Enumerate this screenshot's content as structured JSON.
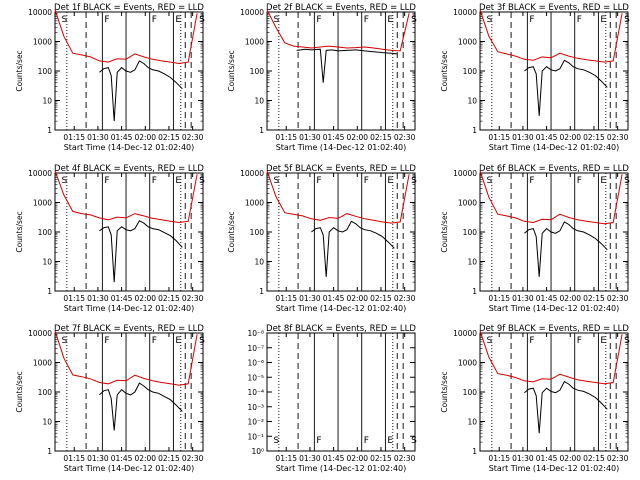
{
  "chart_data": [
    {
      "type": "line",
      "title": "Det 1f BLACK = Events, RED = LLD",
      "ylabel": "Counts/sec",
      "xlabel": "Start Time (14-Dec-12 01:02:40)",
      "ylim": [
        1,
        10000
      ],
      "yscale": "log",
      "yticks": [
        "1",
        "10",
        "100",
        "1000",
        "10000"
      ],
      "xticks": [
        "01:15",
        "01:30",
        "01:45",
        "02:00",
        "02:15",
        "02:30"
      ],
      "markers": [
        "S",
        "F",
        "F",
        "E",
        "S"
      ],
      "series": [
        {
          "color": "#d40000",
          "x": [
            0,
            6,
            12,
            18,
            24,
            30,
            36,
            42,
            48,
            54,
            60,
            66,
            72,
            78,
            84,
            90,
            96
          ],
          "y": [
            12000,
            1500,
            400,
            350,
            300,
            220,
            200,
            260,
            250,
            380,
            300,
            250,
            220,
            200,
            180,
            200,
            9000
          ]
        },
        {
          "color": "#000000",
          "x": [
            30,
            33,
            36,
            38,
            40,
            42,
            45,
            48,
            51,
            54,
            57,
            60,
            63,
            66,
            70,
            74,
            78,
            82,
            86
          ],
          "y": [
            90,
            120,
            130,
            70,
            2,
            90,
            130,
            100,
            90,
            110,
            220,
            180,
            130,
            110,
            100,
            80,
            60,
            40,
            25
          ]
        }
      ]
    },
    {
      "type": "line",
      "title": "Det 2f BLACK = Events, RED = LLD",
      "ylabel": "Counts/sec",
      "xlabel": "Start Time (14-Dec-12 01:02:40)",
      "ylim": [
        1,
        10000
      ],
      "yscale": "log",
      "yticks": [
        "1",
        "10",
        "100",
        "1000",
        "10000"
      ],
      "xticks": [
        "01:15",
        "01:30",
        "01:45",
        "02:00",
        "02:15",
        "02:30"
      ],
      "markers": [
        "S",
        "F",
        "F",
        "E",
        "S"
      ],
      "series": [
        {
          "color": "#d40000",
          "x": [
            0,
            6,
            12,
            18,
            24,
            30,
            36,
            42,
            48,
            54,
            60,
            66,
            72,
            78,
            84,
            90,
            96
          ],
          "y": [
            12000,
            3000,
            900,
            700,
            650,
            600,
            650,
            700,
            650,
            600,
            620,
            650,
            600,
            550,
            500,
            480,
            9000
          ]
        },
        {
          "color": "#000000",
          "x": [
            20,
            26,
            30,
            36,
            38,
            40,
            44,
            48,
            54,
            60,
            66,
            72,
            78,
            84,
            88
          ],
          "y": [
            500,
            550,
            520,
            550,
            40,
            500,
            520,
            480,
            500,
            520,
            480,
            450,
            420,
            400,
            380
          ]
        }
      ]
    },
    {
      "type": "line",
      "title": "Det 3f BLACK = Events, RED = LLD",
      "ylabel": "Counts/sec",
      "xlabel": "Start Time (14-Dec-12 01:02:40)",
      "ylim": [
        1,
        10000
      ],
      "yscale": "log",
      "yticks": [
        "1",
        "10",
        "100",
        "1000",
        "10000"
      ],
      "xticks": [
        "01:15",
        "01:30",
        "01:45",
        "02:00",
        "02:15",
        "02:30"
      ],
      "markers": [
        "S",
        "F",
        "F",
        "E",
        "S"
      ],
      "series": [
        {
          "color": "#d40000",
          "x": [
            0,
            6,
            12,
            18,
            24,
            30,
            36,
            42,
            48,
            54,
            60,
            66,
            72,
            78,
            84,
            90,
            96
          ],
          "y": [
            12000,
            1500,
            450,
            380,
            320,
            250,
            230,
            300,
            280,
            400,
            320,
            270,
            240,
            220,
            200,
            220,
            9000
          ]
        },
        {
          "color": "#000000",
          "x": [
            30,
            33,
            36,
            38,
            40,
            42,
            45,
            48,
            51,
            54,
            57,
            60,
            63,
            66,
            70,
            74,
            78,
            82,
            86
          ],
          "y": [
            100,
            130,
            140,
            80,
            3,
            100,
            140,
            110,
            100,
            120,
            230,
            190,
            140,
            120,
            110,
            90,
            70,
            45,
            28
          ]
        }
      ]
    },
    {
      "type": "line",
      "title": "Det 4f BLACK = Events, RED = LLD",
      "ylabel": "Counts/sec",
      "xlabel": "Start Time (14-Dec-12 01:02:40)",
      "ylim": [
        1,
        10000
      ],
      "yscale": "log",
      "yticks": [
        "1",
        "10",
        "100",
        "1000",
        "10000"
      ],
      "xticks": [
        "01:15",
        "01:30",
        "01:45",
        "02:00",
        "02:15",
        "02:30"
      ],
      "markers": [
        "S",
        "F",
        "F",
        "E",
        "S"
      ],
      "series": [
        {
          "color": "#d40000",
          "x": [
            0,
            6,
            12,
            18,
            24,
            30,
            36,
            42,
            48,
            54,
            60,
            66,
            72,
            78,
            84,
            90,
            96
          ],
          "y": [
            12000,
            1800,
            500,
            420,
            380,
            300,
            260,
            320,
            300,
            420,
            350,
            290,
            260,
            230,
            210,
            230,
            9000
          ]
        },
        {
          "color": "#000000",
          "x": [
            30,
            33,
            36,
            38,
            40,
            42,
            45,
            48,
            51,
            54,
            57,
            60,
            63,
            66,
            70,
            74,
            78,
            82,
            86
          ],
          "y": [
            110,
            140,
            150,
            80,
            2,
            110,
            150,
            120,
            110,
            130,
            240,
            200,
            150,
            130,
            120,
            95,
            75,
            50,
            30
          ]
        }
      ]
    },
    {
      "type": "line",
      "title": "Det 5f BLACK = Events, RED = LLD",
      "ylabel": "Counts/sec",
      "xlabel": "Start Time (14-Dec-12 01:02:40)",
      "ylim": [
        1,
        10000
      ],
      "yscale": "log",
      "yticks": [
        "1",
        "10",
        "100",
        "1000",
        "10000"
      ],
      "xticks": [
        "01:15",
        "01:30",
        "01:45",
        "02:00",
        "02:15",
        "02:30"
      ],
      "markers": [
        "S",
        "F",
        "F",
        "E",
        "S"
      ],
      "series": [
        {
          "color": "#d40000",
          "x": [
            0,
            6,
            12,
            18,
            24,
            30,
            36,
            42,
            48,
            54,
            60,
            66,
            72,
            78,
            84,
            90,
            96
          ],
          "y": [
            12000,
            1600,
            450,
            400,
            350,
            280,
            250,
            310,
            290,
            420,
            340,
            280,
            250,
            220,
            200,
            220,
            9000
          ]
        },
        {
          "color": "#000000",
          "x": [
            30,
            33,
            36,
            38,
            40,
            42,
            45,
            48,
            51,
            54,
            57,
            60,
            63,
            66,
            70,
            74,
            78,
            82,
            86
          ],
          "y": [
            100,
            130,
            140,
            80,
            3,
            100,
            140,
            110,
            100,
            120,
            230,
            190,
            140,
            120,
            110,
            90,
            70,
            45,
            28
          ]
        }
      ]
    },
    {
      "type": "line",
      "title": "Det 6f BLACK = Events, RED = LLD",
      "ylabel": "Counts/sec",
      "xlabel": "Start Time (14-Dec-12 01:02:40)",
      "ylim": [
        1,
        10000
      ],
      "yscale": "log",
      "yticks": [
        "1",
        "10",
        "100",
        "1000",
        "10000"
      ],
      "xticks": [
        "01:15",
        "01:30",
        "01:45",
        "02:00",
        "02:15",
        "02:30"
      ],
      "markers": [
        "S",
        "F",
        "F",
        "E",
        "S"
      ],
      "series": [
        {
          "color": "#d40000",
          "x": [
            0,
            6,
            12,
            18,
            24,
            30,
            36,
            42,
            48,
            54,
            60,
            66,
            72,
            78,
            84,
            90,
            96
          ],
          "y": [
            12000,
            1500,
            400,
            350,
            300,
            230,
            210,
            270,
            260,
            400,
            310,
            260,
            230,
            210,
            190,
            210,
            9000
          ]
        },
        {
          "color": "#000000",
          "x": [
            30,
            33,
            36,
            38,
            40,
            42,
            45,
            48,
            51,
            54,
            57,
            60,
            63,
            66,
            70,
            74,
            78,
            82,
            86
          ],
          "y": [
            90,
            120,
            130,
            70,
            3,
            90,
            130,
            100,
            90,
            110,
            220,
            180,
            130,
            110,
            100,
            80,
            60,
            40,
            25
          ]
        }
      ]
    },
    {
      "type": "line",
      "title": "Det 7f BLACK = Events, RED = LLD",
      "ylabel": "Counts/sec",
      "xlabel": "Start Time (14-Dec-12 01:02:40)",
      "ylim": [
        1,
        10000
      ],
      "yscale": "log",
      "yticks": [
        "1",
        "10",
        "100",
        "1000",
        "10000"
      ],
      "xticks": [
        "01:15",
        "01:30",
        "01:45",
        "02:00",
        "02:15",
        "02:30"
      ],
      "markers": [
        "S",
        "F",
        "F",
        "E",
        "S"
      ],
      "series": [
        {
          "color": "#d40000",
          "x": [
            0,
            6,
            12,
            18,
            24,
            30,
            36,
            42,
            48,
            54,
            60,
            66,
            72,
            78,
            84,
            90,
            96
          ],
          "y": [
            12000,
            1400,
            380,
            330,
            280,
            210,
            190,
            250,
            240,
            370,
            290,
            240,
            210,
            190,
            170,
            190,
            9000
          ]
        },
        {
          "color": "#000000",
          "x": [
            30,
            33,
            36,
            38,
            40,
            42,
            45,
            48,
            51,
            54,
            57,
            60,
            63,
            66,
            70,
            74,
            78,
            82,
            86
          ],
          "y": [
            80,
            110,
            120,
            60,
            5,
            80,
            120,
            90,
            80,
            100,
            200,
            160,
            120,
            100,
            90,
            70,
            55,
            35,
            22
          ]
        }
      ]
    },
    {
      "type": "line",
      "title": "Det 8f BLACK = Events, RED = LLD",
      "ylabel": "",
      "xlabel": "Start Time (14-Dec-12 01:02:40)",
      "ylim": [
        1e-08,
        1
      ],
      "yscale": "log",
      "yticks": [
        "10⁰",
        "10⁻¹",
        "10⁻²",
        "10⁻³",
        "10⁻⁴",
        "10⁻⁵",
        "10⁻⁶",
        "10⁻⁷",
        "10⁻⁸"
      ],
      "xticks": [
        "01:15",
        "01:30",
        "01:45",
        "02:00",
        "02:15",
        "02:30"
      ],
      "markers": [
        "S",
        "F",
        "F",
        "E",
        "S"
      ],
      "series": []
    },
    {
      "type": "line",
      "title": "Det 9f BLACK = Events, RED = LLD",
      "ylabel": "Counts/sec",
      "xlabel": "Start Time (14-Dec-12 01:02:40)",
      "ylim": [
        1,
        10000
      ],
      "yscale": "log",
      "yticks": [
        "1",
        "10",
        "100",
        "1000",
        "10000"
      ],
      "xticks": [
        "01:15",
        "01:30",
        "01:45",
        "02:00",
        "02:15",
        "02:30"
      ],
      "markers": [
        "S",
        "F",
        "F",
        "E",
        "S"
      ],
      "series": [
        {
          "color": "#d40000",
          "x": [
            0,
            6,
            12,
            18,
            24,
            30,
            36,
            42,
            48,
            54,
            60,
            66,
            72,
            78,
            84,
            90,
            96
          ],
          "y": [
            12000,
            1500,
            420,
            370,
            310,
            240,
            220,
            280,
            270,
            400,
            320,
            260,
            230,
            210,
            190,
            210,
            9000
          ]
        },
        {
          "color": "#000000",
          "x": [
            30,
            33,
            36,
            38,
            40,
            42,
            45,
            48,
            51,
            54,
            57,
            60,
            63,
            66,
            70,
            74,
            78,
            82,
            86
          ],
          "y": [
            95,
            125,
            135,
            75,
            4,
            95,
            135,
            105,
            95,
            115,
            225,
            185,
            135,
            115,
            105,
            85,
            65,
            42,
            26
          ]
        }
      ]
    }
  ]
}
